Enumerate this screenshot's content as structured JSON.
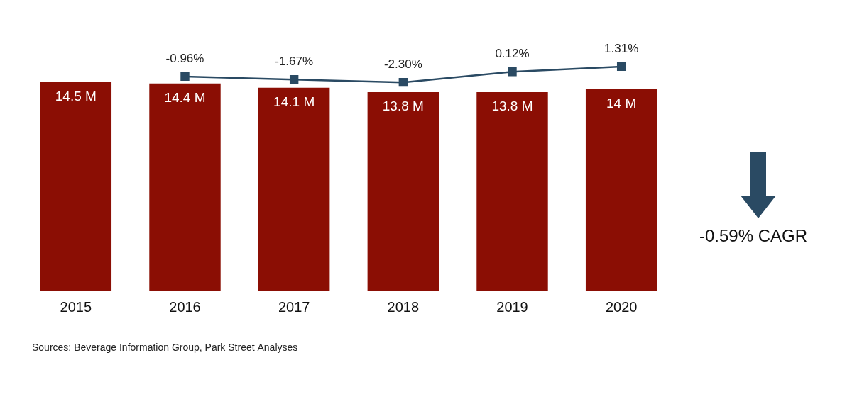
{
  "chart_data": {
    "type": "bar",
    "categories": [
      "2015",
      "2016",
      "2017",
      "2018",
      "2019",
      "2020"
    ],
    "series": [
      {
        "type": "bar",
        "color": "#8b0e04",
        "values": [
          14.5,
          14.4,
          14.1,
          13.8,
          13.8,
          14
        ],
        "value_labels": [
          "14.5 M",
          "14.4 M",
          "14.1 M",
          "13.8 M",
          "13.8 M",
          "14 M"
        ]
      },
      {
        "type": "line",
        "axis": "y2",
        "color": "#2a4a63",
        "marker": "square",
        "values": [
          null,
          -0.96,
          -1.67,
          -2.3,
          0.12,
          1.31
        ],
        "value_labels": [
          null,
          "-0.96%",
          "-1.67%",
          "-2.30%",
          "0.12%",
          "1.31%"
        ]
      }
    ],
    "ylim": [
      0,
      17
    ],
    "y2lim": [
      -50,
      6
    ],
    "data_labels": true,
    "tick_labels": "x",
    "grid": false,
    "annotation": "-0.59% CAGR",
    "source": "Sources: Beverage Information Group, Park Street Analyses"
  }
}
